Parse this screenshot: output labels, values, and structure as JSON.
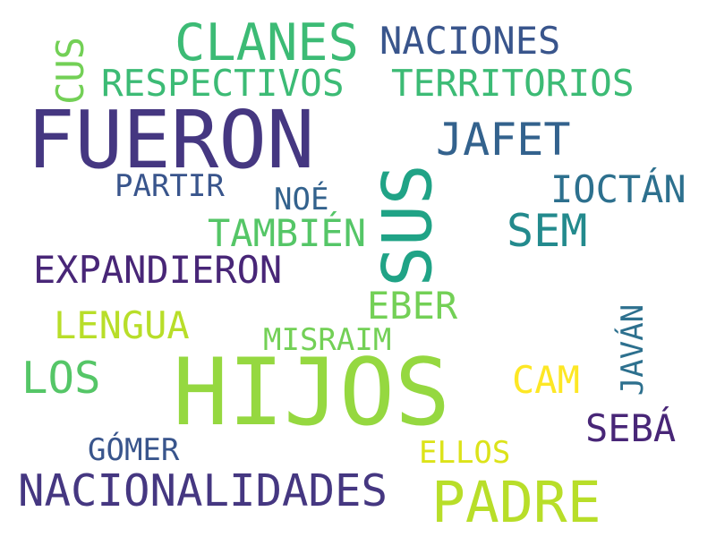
{
  "words": [
    {
      "text": "FUERON",
      "color": "#453781"
    },
    {
      "text": "HIJOS",
      "color": "#95d840"
    },
    {
      "text": "SUS",
      "color": "#20a386"
    },
    {
      "text": "CLANES",
      "color": "#3cbb75"
    },
    {
      "text": "NACIONES",
      "color": "#39558c"
    },
    {
      "text": "RESPECTIVOS",
      "color": "#3cbb75"
    },
    {
      "text": "TERRITORIOS",
      "color": "#3cbb75"
    },
    {
      "text": "CUS",
      "color": "#73d056"
    },
    {
      "text": "JAFET",
      "color": "#33628d"
    },
    {
      "text": "PARTIR",
      "color": "#39558c"
    },
    {
      "text": "NOÉ",
      "color": "#33628d"
    },
    {
      "text": "IOCTÁN",
      "color": "#2d708e"
    },
    {
      "text": "TAMBIÉN",
      "color": "#55c667"
    },
    {
      "text": "SEM",
      "color": "#238a8d"
    },
    {
      "text": "EXPANDIERON",
      "color": "#482677"
    },
    {
      "text": "EBER",
      "color": "#73d056"
    },
    {
      "text": "LENGUA",
      "color": "#b8de29"
    },
    {
      "text": "MISRAIM",
      "color": "#73d056"
    },
    {
      "text": "JAVÁN",
      "color": "#2d708e"
    },
    {
      "text": "LOS",
      "color": "#55c667"
    },
    {
      "text": "CAM",
      "color": "#fde725"
    },
    {
      "text": "SEBÁ",
      "color": "#482677"
    },
    {
      "text": "GÓMER",
      "color": "#39558c"
    },
    {
      "text": "ELLOS",
      "color": "#dce319"
    },
    {
      "text": "NACIONALIDADES",
      "color": "#453781"
    },
    {
      "text": "PADRE",
      "color": "#b8de29"
    }
  ]
}
